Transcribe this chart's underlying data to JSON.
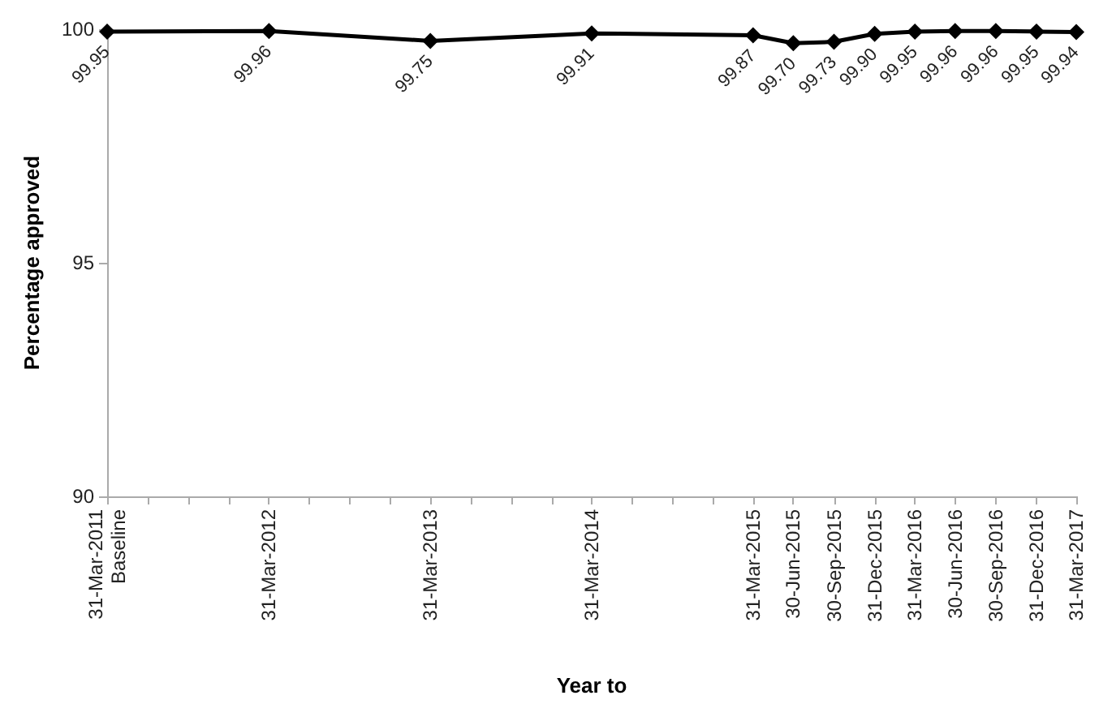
{
  "chart_data": {
    "type": "line",
    "xlabel": "Year to",
    "ylabel": "Percentage approved",
    "x": [
      "2011-03-31",
      "2012-03-31",
      "2013-03-31",
      "2014-03-31",
      "2015-03-31",
      "2015-06-30",
      "2015-09-30",
      "2015-12-31",
      "2016-03-31",
      "2016-06-30",
      "2016-09-30",
      "2016-12-31",
      "2017-03-31"
    ],
    "series": [
      {
        "color": "#000000",
        "values": [
          99.95,
          99.96,
          99.75,
          99.91,
          99.87,
          99.7,
          99.73,
          99.9,
          99.95,
          99.96,
          99.96,
          99.95,
          99.94
        ],
        "value_labels": [
          "99.95",
          "99.96",
          "99.75",
          "99.91",
          "99.87",
          "99.70",
          "99.73",
          "99.90",
          "99.95",
          "99.96",
          "99.96",
          "99.95",
          "99.94"
        ]
      }
    ],
    "xlim": [
      "2011-03-31",
      "2017-03-31"
    ],
    "xticks": [
      {
        "value": "2011-03-31",
        "label": "31-Mar-2011\nBaseline"
      },
      {
        "value": "2011-06-30",
        "label": null
      },
      {
        "value": "2011-09-30",
        "label": null
      },
      {
        "value": "2011-12-31",
        "label": null
      },
      {
        "value": "2012-03-31",
        "label": "31-Mar-2012"
      },
      {
        "value": "2012-06-30",
        "label": null
      },
      {
        "value": "2012-09-30",
        "label": null
      },
      {
        "value": "2012-12-31",
        "label": null
      },
      {
        "value": "2013-03-31",
        "label": "31-Mar-2013"
      },
      {
        "value": "2013-06-30",
        "label": null
      },
      {
        "value": "2013-09-30",
        "label": null
      },
      {
        "value": "2013-12-31",
        "label": null
      },
      {
        "value": "2014-03-31",
        "label": "31-Mar-2014"
      },
      {
        "value": "2014-06-30",
        "label": null
      },
      {
        "value": "2014-09-30",
        "label": null
      },
      {
        "value": "2014-12-31",
        "label": null
      },
      {
        "value": "2015-03-31",
        "label": "31-Mar-2015"
      },
      {
        "value": "2015-06-30",
        "label": "30-Jun-2015"
      },
      {
        "value": "2015-09-30",
        "label": "30-Sep-2015"
      },
      {
        "value": "2015-12-31",
        "label": "31-Dec-2015"
      },
      {
        "value": "2016-03-31",
        "label": "31-Mar-2016"
      },
      {
        "value": "2016-06-30",
        "label": "30-Jun-2016"
      },
      {
        "value": "2016-09-30",
        "label": "30-Sep-2016"
      },
      {
        "value": "2016-12-31",
        "label": "31-Dec-2016"
      },
      {
        "value": "2017-03-31",
        "label": "31-Mar-2017"
      }
    ],
    "ylim": [
      90,
      100
    ],
    "yticks": [
      90,
      95,
      100
    ],
    "grid": false,
    "marker": "diamond",
    "line_style": "solid"
  }
}
